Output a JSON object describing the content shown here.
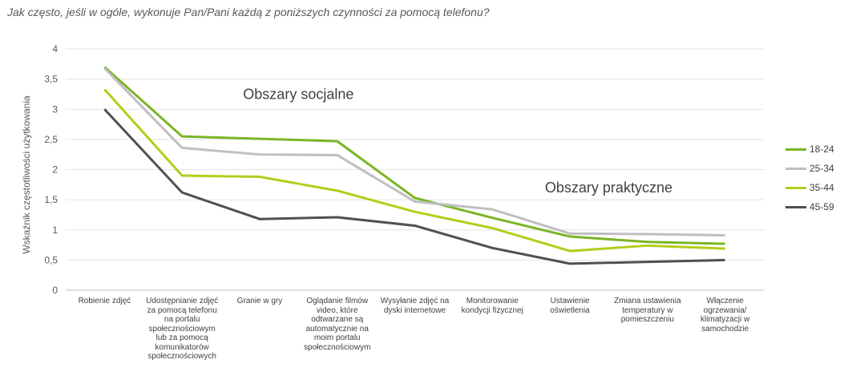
{
  "title": "Jak często, jeśli w ogóle, wykonuje Pan/Pani każdą z poniższych czynności za pomocą telefonu?",
  "chart_data": {
    "type": "line",
    "ylabel": "Wskaźnik częstotliwości użytkowania",
    "xlabel": "",
    "ylim": [
      0,
      4
    ],
    "yticks": [
      "0",
      "0,5",
      "1",
      "1,5",
      "2",
      "2,5",
      "3",
      "3,5",
      "4"
    ],
    "grid": true,
    "legend_position": "right",
    "categories": [
      "Robienie zdjęć",
      "Udostępnianie zdjęć\nza pomocą telefonu\nna portalu\nspołecznościowym\nlub za pomocą\nkomunikatorów\nspołecznościowych",
      "Granie w gry",
      "Oglądanie filmów\nvideo, które\nodtwarzane są\nautomatycznie na\nmoim portalu\nspołecznościowym",
      "Wysyłanie zdjęć na\ndyski internetowe",
      "Monitorowanie\nkondycji fizycznej",
      "Ustawienie\noświetlenia",
      "Zmiana ustawienia\ntemperatury w\npomieszczeniu",
      "Włączenie\nogrzewania/\nklimatyzacji w\nsamochodzie"
    ],
    "series": [
      {
        "name": "18-24",
        "color": "#7cb526",
        "values": [
          3.7,
          2.55,
          2.51,
          2.47,
          1.53,
          1.2,
          0.89,
          0.8,
          0.77
        ]
      },
      {
        "name": "25-34",
        "color": "#bfbfbf",
        "values": [
          3.68,
          2.36,
          2.25,
          2.24,
          1.47,
          1.34,
          0.94,
          0.93,
          0.91
        ]
      },
      {
        "name": "35-44",
        "color": "#b5cc1b",
        "values": [
          3.33,
          1.9,
          1.88,
          1.65,
          1.3,
          1.03,
          0.65,
          0.74,
          0.69
        ]
      },
      {
        "name": "45-59",
        "color": "#505050",
        "values": [
          3.0,
          1.62,
          1.18,
          1.21,
          1.07,
          0.7,
          0.44,
          0.47,
          0.5
        ]
      }
    ],
    "annotations": [
      {
        "text": "Obszary socjalne",
        "x": 2.5,
        "y": 3.25
      },
      {
        "text": "Obszary praktyczne",
        "x": 6.5,
        "y": 1.7
      }
    ]
  }
}
